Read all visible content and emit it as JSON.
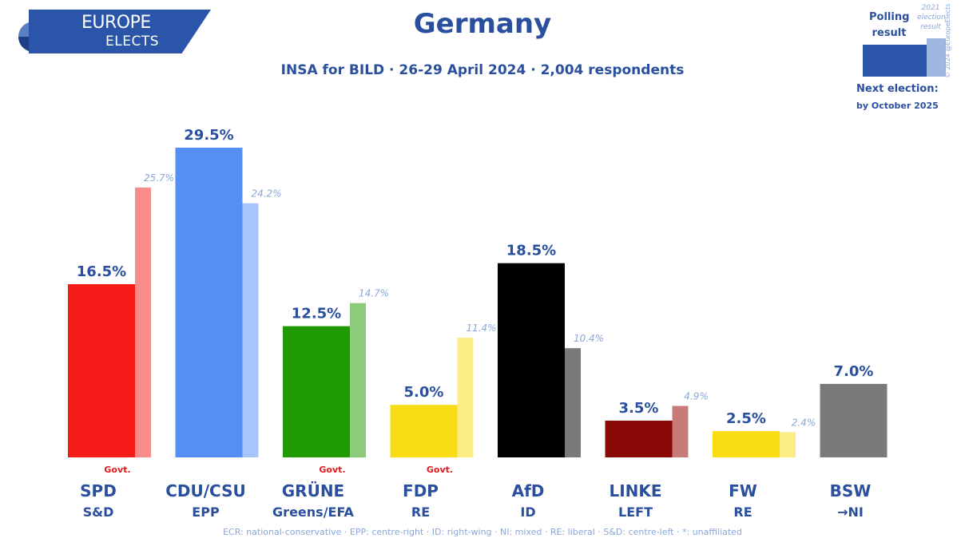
{
  "brand": {
    "line1": "EUROPE",
    "line2": "ELECTS"
  },
  "header": {
    "title": "Germany",
    "subtitle": "INSA for BILD · 26-29 April 2024 · 2,004 respondents"
  },
  "legend": {
    "polling_label": "Polling result",
    "election_label": "2021 election result",
    "copyright": "© 2024 @EuropeElects",
    "next_election_label": "Next election:",
    "next_election_date": "by October 2025"
  },
  "footer": {
    "text": "ECR: national-conservative · EPP: centre-right · ID: right-wing · NI: mixed · RE: liberal · S&D: centre-left · *: unaffiliated"
  },
  "chart_data": {
    "type": "bar",
    "categories": [
      "SPD",
      "CDU/CSU",
      "GRÜNE",
      "FDP",
      "AfD",
      "LINKE",
      "FW",
      "BSW"
    ],
    "groups": [
      "S&D",
      "EPP",
      "Greens/EFA",
      "RE",
      "ID",
      "LEFT",
      "RE",
      "→NI"
    ],
    "govt_label": "Govt.",
    "govt": [
      true,
      false,
      true,
      true,
      false,
      false,
      false,
      false
    ],
    "series": [
      {
        "name": "Polling result",
        "values": [
          16.5,
          29.5,
          12.5,
          5.0,
          18.5,
          3.5,
          2.5,
          7.0
        ],
        "labels": [
          "16.5%",
          "29.5%",
          "12.5%",
          "5.0%",
          "18.5%",
          "3.5%",
          "2.5%",
          "7.0%"
        ]
      },
      {
        "name": "2021 election result",
        "values": [
          25.7,
          24.2,
          14.7,
          11.4,
          10.4,
          4.9,
          2.4,
          null
        ],
        "labels": [
          "25.7%",
          "24.2%",
          "14.7%",
          "11.4%",
          "10.4%",
          "4.9%",
          "2.4%",
          ""
        ]
      }
    ],
    "colors": [
      "#f41b18",
      "#558ff5",
      "#1f9a03",
      "#f9dc14",
      "#000000",
      "#8b0a07",
      "#f9dc14",
      "#7a7a7a"
    ],
    "colors_2021": [
      "#f98c88",
      "#a7c5fb",
      "#8ccb7b",
      "#fcec85",
      "#7a7a7a",
      "#c67b79",
      "#fcec85",
      null
    ],
    "ylim": [
      0,
      31.2
    ]
  }
}
